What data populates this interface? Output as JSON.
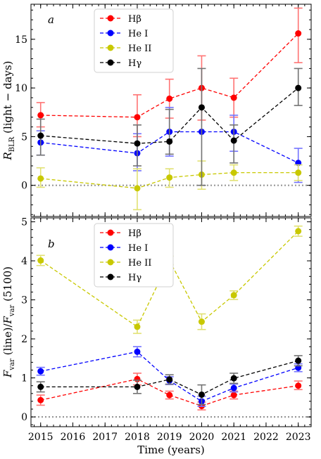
{
  "chart_data": [
    {
      "type": "line",
      "panel_label": "a",
      "ylabel": "R_BLR (light − days)",
      "ylabel_parts": {
        "main": "R",
        "sub": "BLR",
        "rest": " (light − days)"
      },
      "xlim": [
        2014.7,
        2023.4
      ],
      "ylim": [
        -3.2,
        18.6
      ],
      "yticks": [
        0,
        5,
        10,
        15
      ],
      "ytick_labels": [
        "0",
        "5",
        "10",
        "15"
      ],
      "legend": "upper-left",
      "reference_line": 0,
      "series": [
        {
          "name": "Hβ",
          "color": "#ff0000",
          "x": [
            2015,
            2018,
            2019,
            2020,
            2021,
            2023
          ],
          "values": [
            7.2,
            7.0,
            8.9,
            10.0,
            9.0,
            15.6
          ],
          "err_low": [
            1.2,
            2.0,
            2.0,
            3.3,
            2.0,
            3.0
          ],
          "err_high": [
            1.3,
            2.3,
            2.0,
            3.3,
            2.0,
            2.6
          ]
        },
        {
          "name": "He I",
          "color": "#0000ff",
          "x": [
            2015,
            2018,
            2019,
            2020,
            2021,
            2023
          ],
          "values": [
            4.4,
            3.3,
            5.5,
            5.5,
            5.5,
            2.3
          ],
          "err_low": [
            1.3,
            1.8,
            2.5,
            0.0,
            2.0,
            2.0
          ],
          "err_high": [
            1.2,
            2.0,
            2.5,
            0.0,
            1.7,
            1.5
          ]
        },
        {
          "name": "He II",
          "color": "#c8c800",
          "x": [
            2015,
            2018,
            2019,
            2020,
            2021,
            2023
          ],
          "values": [
            0.7,
            -0.3,
            0.8,
            1.1,
            1.3,
            1.3
          ],
          "err_low": [
            0.9,
            2.2,
            1.0,
            1.5,
            0.8,
            0.8
          ],
          "err_high": [
            1.1,
            2.0,
            0.9,
            1.4,
            0.8,
            0.8
          ]
        },
        {
          "name": "Hγ",
          "color": "#000000",
          "x": [
            2015,
            2018,
            2019,
            2020,
            2021,
            2023
          ],
          "values": [
            5.1,
            4.3,
            4.5,
            8.0,
            4.6,
            10.0
          ],
          "err_low": [
            2.0,
            2.3,
            1.3,
            8.0,
            2.3,
            1.8
          ],
          "err_high": [
            1.7,
            1.9,
            3.3,
            4.0,
            1.6,
            2.0
          ]
        }
      ]
    },
    {
      "type": "line",
      "panel_label": "b",
      "xlabel": "Time (years)",
      "ylabel": "F_var (line)/F_var (5100)",
      "ylabel_parts": {
        "f1": "F",
        "s1": "var",
        "mid": " (line)/",
        "f2": "F",
        "s2": "var",
        "rest": " (5100)"
      },
      "xlim": [
        2014.7,
        2023.4
      ],
      "ylim": [
        -0.25,
        5.1
      ],
      "xticks": [
        2015,
        2016,
        2017,
        2018,
        2019,
        2020,
        2021,
        2022,
        2023
      ],
      "xtick_labels": [
        "2015",
        "2016",
        "2017",
        "2018",
        "2019",
        "2020",
        "2021",
        "2022",
        "2023"
      ],
      "yticks": [
        0,
        1,
        2,
        3,
        4,
        5
      ],
      "ytick_labels": [
        "0",
        "1",
        "2",
        "3",
        "4",
        "5"
      ],
      "legend": "upper-left",
      "reference_line": 0,
      "series": [
        {
          "name": "Hβ",
          "color": "#ff0000",
          "x": [
            2015,
            2018,
            2019,
            2020,
            2021,
            2023
          ],
          "values": [
            0.43,
            0.97,
            0.56,
            0.28,
            0.56,
            0.8
          ],
          "err_low": [
            0.13,
            0.15,
            0.1,
            0.1,
            0.1,
            0.1
          ],
          "err_high": [
            0.13,
            0.15,
            0.1,
            0.1,
            0.1,
            0.12
          ]
        },
        {
          "name": "He I",
          "color": "#0000ff",
          "x": [
            2015,
            2018,
            2019,
            2020,
            2021,
            2023
          ],
          "values": [
            1.17,
            1.67,
            0.93,
            0.4,
            0.74,
            1.26
          ],
          "err_low": [
            0.1,
            0.13,
            0.1,
            0.13,
            0.1,
            0.1
          ],
          "err_high": [
            0.1,
            0.13,
            0.1,
            0.13,
            0.1,
            0.1
          ]
        },
        {
          "name": "He II",
          "color": "#c8c800",
          "x": [
            2015,
            2018,
            2019,
            2020,
            2021,
            2023
          ],
          "values": [
            4.01,
            2.31,
            4.01,
            2.44,
            3.12,
            4.76
          ],
          "err_low": [
            0.13,
            0.17,
            0.11,
            0.2,
            0.11,
            0.13
          ],
          "err_high": [
            0.13,
            0.17,
            0.11,
            0.2,
            0.11,
            0.13
          ]
        },
        {
          "name": "Hγ",
          "color": "#000000",
          "x": [
            2015,
            2018,
            2019,
            2020,
            2021,
            2023
          ],
          "values": [
            0.77,
            0.77,
            0.96,
            0.57,
            0.99,
            1.44
          ],
          "err_low": [
            0.13,
            0.17,
            0.12,
            0.25,
            0.13,
            0.13
          ],
          "err_high": [
            0.13,
            0.17,
            0.12,
            0.25,
            0.13,
            0.13
          ]
        }
      ]
    }
  ]
}
